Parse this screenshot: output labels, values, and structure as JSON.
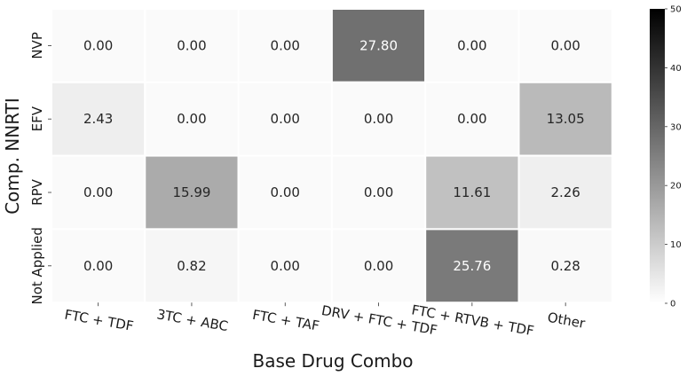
{
  "chart_data": {
    "type": "heatmap",
    "title": "",
    "xlabel": "Base Drug Combo",
    "ylabel": "Comp. NNRTI",
    "x_categories": [
      "FTC + TDF",
      "3TC + ABC",
      "FTC + TAF",
      "DRV + FTC + TDF",
      "FTC + RTVB + TDF",
      "Other"
    ],
    "y_categories": [
      "NVP",
      "EFV",
      "RPV",
      "Not Applied"
    ],
    "values": [
      [
        0.0,
        0.0,
        0.0,
        27.8,
        0.0,
        0.0
      ],
      [
        2.43,
        0.0,
        0.0,
        0.0,
        0.0,
        13.05
      ],
      [
        0.0,
        15.99,
        0.0,
        0.0,
        11.61,
        2.26
      ],
      [
        0.0,
        0.82,
        0.0,
        0.0,
        25.76,
        0.28
      ]
    ],
    "value_format": "0.00",
    "colormap": "Greys",
    "vmin": 0,
    "vmax": 50,
    "colorbar_ticks": [
      0,
      10,
      20,
      30,
      40,
      50
    ],
    "cell_separator_color": "#ffffff"
  }
}
